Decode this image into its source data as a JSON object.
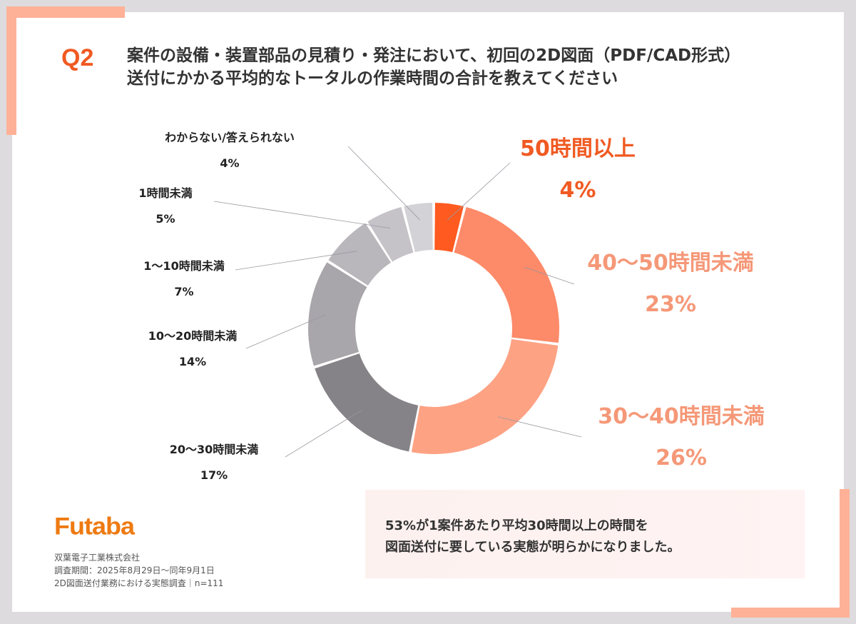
{
  "header": {
    "question_no": "Q2",
    "title_line1": "案件の設備・装置部品の見積り・発注において、初回の2D図面（PDF/CAD形式）",
    "title_line2": "送付にかかる平均的なトータルの作業時間の合計を教えてください"
  },
  "chart_data": {
    "type": "pie",
    "donut": true,
    "title": "",
    "unit": "%",
    "categories": [
      "50時間以上",
      "40〜50時間未満",
      "30〜40時間未満",
      "20〜30時間未満",
      "10〜20時間未満",
      "1〜10時間未満",
      "1時間未満",
      "わからない/答えられない"
    ],
    "values": [
      4,
      23,
      26,
      17,
      14,
      7,
      5,
      4
    ],
    "labels": [
      "4%",
      "23%",
      "26%",
      "17%",
      "14%",
      "7%",
      "5%",
      "4%"
    ],
    "colors": [
      "#ff5a1f",
      "#fd8a68",
      "#fea284",
      "#858387",
      "#a8a6ab",
      "#b9b7bc",
      "#c5c3c8",
      "#d3d2d6"
    ],
    "label_colors": [
      "#f05a22",
      "#f59878",
      "#f59878",
      "#222222",
      "#222222",
      "#222222",
      "#222222",
      "#222222"
    ],
    "start": "12 o'clock, clockwise"
  },
  "callout": {
    "line1": "53%が1案件あたり平均30時間以上の時間を",
    "line2": "図面送付に要している実態が明らかになりました。"
  },
  "footer": {
    "logo": "Futaba",
    "company": "双葉電子工業株式会社",
    "period": "調査期間：2025年8月29日〜同年9月1日",
    "survey": "2D図面送付業務における実態調査｜n=111"
  },
  "colors": {
    "accent": "#f05a22",
    "corner": "#ffb197",
    "logo": "#ee7a12"
  }
}
